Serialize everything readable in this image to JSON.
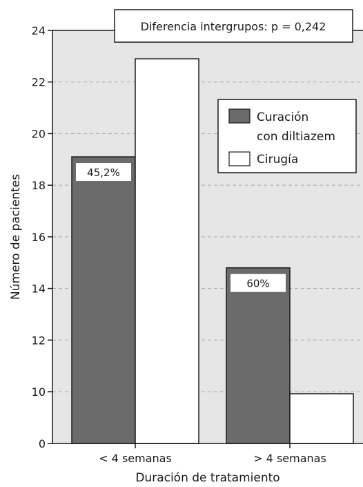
{
  "chart_data": {
    "type": "bar",
    "categories": [
      "< 4 semanas",
      "> 4 semanas"
    ],
    "series": [
      {
        "name": "Curación con diltiazem",
        "values": [
          19.1,
          14.8
        ],
        "color": "#6b6b6b",
        "labels": [
          "45,2%",
          "60%"
        ]
      },
      {
        "name": "Cirugía",
        "values": [
          22.9,
          9.6
        ],
        "color": "#ffffff"
      }
    ],
    "xlabel": "Duración de tratamiento",
    "ylabel": "Número de pacientes",
    "yticks": [
      0,
      10,
      12,
      14,
      16,
      18,
      20,
      22,
      24
    ],
    "ylim": [
      8,
      24
    ],
    "y_axis_break": "0 shown at baseline; axis jumps from 0 to 10",
    "grid": "horizontal dashed",
    "plot_background": "#e6e6e6",
    "legend": {
      "placement": "top-right",
      "entries": [
        "Curación",
        "con diltiazem",
        "Cirugía"
      ]
    },
    "annotation": "Diferencia intergrupos: p = 0,242"
  }
}
